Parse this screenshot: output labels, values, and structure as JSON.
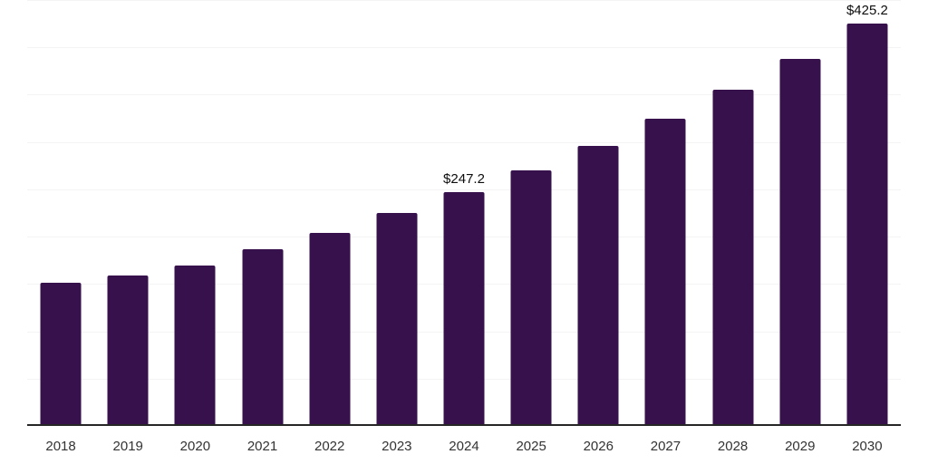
{
  "page": {
    "background_color": "#ffffff"
  },
  "chart_data": {
    "type": "bar",
    "title": "",
    "xlabel": "",
    "ylabel": "",
    "categories": [
      "2018",
      "2019",
      "2020",
      "2021",
      "2022",
      "2023",
      "2024",
      "2025",
      "2026",
      "2027",
      "2028",
      "2029",
      "2030"
    ],
    "values": [
      151.3,
      158.9,
      169.5,
      186.7,
      204.0,
      225.0,
      247.2,
      270.0,
      295.9,
      324.6,
      355.2,
      387.8,
      425.2
    ],
    "data_labels": [
      {
        "category": "2024",
        "text": "$247.2"
      },
      {
        "category": "2030",
        "text": "$425.2"
      }
    ],
    "ylim": [
      0,
      450
    ],
    "grid_step": 50,
    "grid": "horizontal-only",
    "y_tick_labels_shown": false,
    "legend": "none",
    "style": {
      "bar_color": "#36114B",
      "axis_line_color": "#262626",
      "gridline_color": "#f4f4f4",
      "tick_label_color": "#333333",
      "value_label_color": "#0d0d0d"
    }
  }
}
